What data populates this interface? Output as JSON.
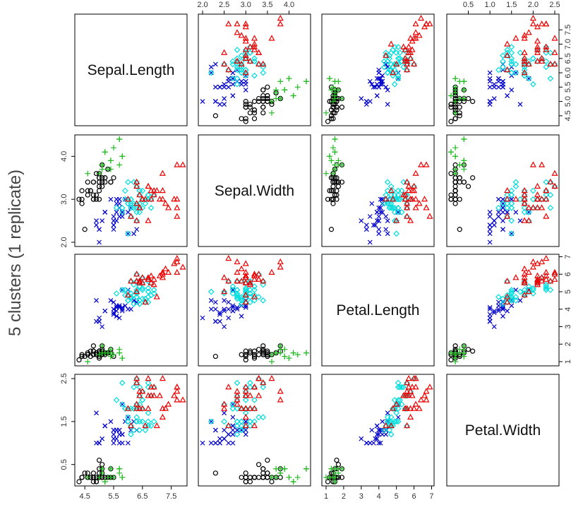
{
  "title": "5 clusters (1 replicate)",
  "chart_data": {
    "type": "scatter",
    "kind": "scatter-matrix",
    "variables": [
      {
        "name": "Sepal.Length",
        "range": [
          4.3,
          7.9
        ],
        "ticks": [
          4.5,
          5.5,
          6.5,
          7.5
        ],
        "tick_labels": [
          "4.5",
          "5.5",
          "6.5",
          "7.5"
        ],
        "side_ticks": [
          4.5,
          5.0,
          5.5,
          6.0,
          6.5,
          7.0,
          7.5
        ],
        "side_tick_labels": [
          "4.5",
          "5.0",
          "5.5",
          "6.0",
          "6.5",
          "7.0",
          "7.5"
        ]
      },
      {
        "name": "Sepal.Width",
        "range": [
          2.0,
          4.4
        ],
        "ticks": [
          2.0,
          2.5,
          3.0,
          3.5,
          4.0
        ],
        "tick_labels": [
          "2.0",
          "2.5",
          "3.0",
          "3.5",
          "4.0"
        ],
        "side_ticks": [
          2.0,
          3.0,
          4.0
        ],
        "side_tick_labels": [
          "2.0",
          "3.0",
          "4.0"
        ]
      },
      {
        "name": "Petal.Length",
        "range": [
          1.0,
          6.9
        ],
        "ticks": [
          1,
          2,
          3,
          4,
          5,
          6,
          7
        ],
        "tick_labels": [
          "1",
          "2",
          "3",
          "4",
          "5",
          "6",
          "7"
        ]
      },
      {
        "name": "Petal.Width",
        "range": [
          0.1,
          2.5
        ],
        "ticks": [
          0.5,
          1.0,
          1.5,
          2.0,
          2.5
        ],
        "tick_labels": [
          "0.5",
          "1.0",
          "1.5",
          "2.0",
          "2.5"
        ],
        "side_ticks": [
          0.5,
          1.5,
          2.5
        ],
        "side_tick_labels": [
          "0.5",
          "1.5",
          "2.5"
        ]
      }
    ],
    "clusters": [
      {
        "symbol": "circle",
        "color": "#000000",
        "points": [
          [
            4.4,
            2.9,
            1.4,
            0.2
          ],
          [
            4.3,
            3.0,
            1.1,
            0.1
          ],
          [
            4.4,
            3.0,
            1.3,
            0.2
          ],
          [
            4.4,
            3.2,
            1.3,
            0.2
          ],
          [
            4.5,
            2.3,
            1.3,
            0.3
          ],
          [
            4.6,
            3.1,
            1.5,
            0.2
          ],
          [
            4.6,
            3.4,
            1.4,
            0.3
          ],
          [
            4.6,
            3.2,
            1.4,
            0.2
          ],
          [
            4.7,
            3.2,
            1.3,
            0.2
          ],
          [
            4.7,
            3.2,
            1.6,
            0.2
          ],
          [
            4.8,
            3.0,
            1.4,
            0.1
          ],
          [
            4.8,
            3.4,
            1.6,
            0.2
          ],
          [
            4.8,
            3.0,
            1.4,
            0.3
          ],
          [
            4.8,
            3.1,
            1.6,
            0.2
          ],
          [
            4.8,
            3.4,
            1.9,
            0.2
          ],
          [
            4.9,
            3.0,
            1.4,
            0.2
          ],
          [
            4.9,
            3.1,
            1.5,
            0.1
          ],
          [
            4.9,
            3.6,
            1.4,
            0.1
          ],
          [
            5.0,
            3.2,
            1.2,
            0.2
          ],
          [
            5.0,
            3.6,
            1.4,
            0.2
          ],
          [
            5.0,
            3.4,
            1.5,
            0.2
          ],
          [
            5.0,
            3.0,
            1.6,
            0.2
          ],
          [
            5.0,
            3.4,
            1.6,
            0.4
          ],
          [
            5.0,
            3.3,
            1.4,
            0.2
          ],
          [
            5.0,
            3.5,
            1.3,
            0.3
          ],
          [
            5.1,
            3.5,
            1.4,
            0.2
          ],
          [
            5.1,
            3.4,
            1.5,
            0.2
          ],
          [
            5.1,
            3.3,
            1.7,
            0.5
          ],
          [
            5.1,
            3.5,
            1.4,
            0.3
          ],
          [
            5.2,
            3.4,
            1.4,
            0.2
          ],
          [
            5.2,
            3.5,
            1.5,
            0.2
          ],
          [
            5.3,
            3.7,
            1.5,
            0.2
          ],
          [
            5.4,
            3.4,
            1.7,
            0.2
          ],
          [
            5.4,
            3.4,
            1.5,
            0.4
          ],
          [
            5.5,
            3.5,
            1.3,
            0.2
          ],
          [
            5.1,
            3.8,
            1.6,
            0.2
          ],
          [
            5.0,
            3.5,
            1.6,
            0.6
          ],
          [
            5.1,
            3.8,
            1.9,
            0.4
          ],
          [
            5.2,
            3.5,
            1.5,
            0.2
          ],
          [
            5.3,
            3.7,
            1.5,
            0.2
          ]
        ]
      },
      {
        "symbol": "plus",
        "color": "#22bb22",
        "points": [
          [
            5.8,
            4.0,
            1.2,
            0.2
          ],
          [
            5.7,
            4.4,
            1.5,
            0.4
          ],
          [
            5.4,
            3.9,
            1.3,
            0.4
          ],
          [
            5.4,
            3.9,
            1.7,
            0.4
          ],
          [
            5.7,
            3.8,
            1.7,
            0.3
          ],
          [
            5.1,
            3.8,
            1.5,
            0.3
          ],
          [
            5.4,
            3.7,
            1.5,
            0.2
          ],
          [
            5.2,
            4.1,
            1.5,
            0.1
          ],
          [
            5.5,
            4.2,
            1.4,
            0.2
          ],
          [
            5.1,
            3.7,
            1.5,
            0.4
          ],
          [
            5.0,
            3.6,
            1.4,
            0.2
          ],
          [
            5.7,
            4.4,
            1.5,
            0.4
          ],
          [
            4.6,
            3.6,
            1.0,
            0.2
          ],
          [
            5.3,
            3.7,
            1.5,
            0.2
          ],
          [
            5.4,
            3.9,
            1.3,
            0.4
          ],
          [
            5.1,
            3.8,
            1.9,
            0.4
          ],
          [
            5.8,
            4.0,
            1.2,
            0.2
          ],
          [
            5.2,
            4.1,
            1.5,
            0.1
          ]
        ]
      },
      {
        "symbol": "cross",
        "color": "#0000cc",
        "points": [
          [
            4.9,
            2.4,
            3.3,
            1.0
          ],
          [
            5.0,
            2.0,
            3.5,
            1.0
          ],
          [
            5.0,
            2.3,
            3.3,
            1.0
          ],
          [
            5.1,
            2.5,
            3.0,
            1.1
          ],
          [
            5.2,
            2.7,
            3.9,
            1.4
          ],
          [
            5.5,
            2.3,
            4.0,
            1.3
          ],
          [
            5.5,
            2.4,
            3.8,
            1.1
          ],
          [
            5.5,
            2.4,
            3.7,
            1.0
          ],
          [
            5.5,
            2.5,
            4.0,
            1.3
          ],
          [
            5.5,
            2.6,
            4.4,
            1.2
          ],
          [
            5.6,
            2.5,
            3.9,
            1.1
          ],
          [
            5.6,
            2.9,
            3.6,
            1.3
          ],
          [
            5.6,
            3.0,
            4.1,
            1.3
          ],
          [
            5.6,
            2.7,
            4.2,
            1.3
          ],
          [
            5.7,
            2.6,
            3.5,
            1.0
          ],
          [
            5.7,
            2.8,
            4.1,
            1.3
          ],
          [
            5.8,
            2.7,
            3.9,
            1.2
          ],
          [
            5.8,
            2.7,
            4.1,
            1.0
          ],
          [
            5.8,
            2.6,
            4.0,
            1.2
          ],
          [
            5.9,
            3.0,
            4.2,
            1.5
          ],
          [
            6.0,
            2.2,
            4.0,
            1.0
          ],
          [
            6.0,
            2.7,
            5.1,
            1.6
          ],
          [
            6.1,
            2.8,
            4.0,
            1.3
          ],
          [
            6.2,
            2.2,
            4.5,
            1.5
          ],
          [
            6.3,
            2.3,
            4.4,
            1.3
          ],
          [
            5.4,
            3.0,
            4.5,
            1.5
          ],
          [
            5.7,
            2.9,
            4.2,
            1.3
          ],
          [
            5.7,
            3.0,
            4.2,
            1.2
          ],
          [
            5.0,
            2.3,
            3.3,
            1.0
          ],
          [
            5.2,
            2.7,
            3.9,
            1.4
          ],
          [
            5.8,
            2.7,
            5.1,
            1.9
          ],
          [
            4.9,
            2.5,
            4.5,
            1.7
          ]
        ]
      },
      {
        "symbol": "diamond",
        "color": "#00dddd",
        "points": [
          [
            6.4,
            3.2,
            4.5,
            1.5
          ],
          [
            6.9,
            3.1,
            4.9,
            1.5
          ],
          [
            6.5,
            2.8,
            4.6,
            1.5
          ],
          [
            6.3,
            3.3,
            4.7,
            1.6
          ],
          [
            6.6,
            2.9,
            4.6,
            1.3
          ],
          [
            6.1,
            2.9,
            4.7,
            1.4
          ],
          [
            6.7,
            3.1,
            4.4,
            1.4
          ],
          [
            6.2,
            2.8,
            4.8,
            1.8
          ],
          [
            6.1,
            3.0,
            4.6,
            1.4
          ],
          [
            6.4,
            2.9,
            4.3,
            1.3
          ],
          [
            6.6,
            3.0,
            4.4,
            1.4
          ],
          [
            6.8,
            2.8,
            4.8,
            1.4
          ],
          [
            6.7,
            3.0,
            5.0,
            1.7
          ],
          [
            6.0,
            2.9,
            4.5,
            1.5
          ],
          [
            6.0,
            3.4,
            4.5,
            1.6
          ],
          [
            6.7,
            3.1,
            4.7,
            1.5
          ],
          [
            6.3,
            2.5,
            4.9,
            1.5
          ],
          [
            6.1,
            2.8,
            4.7,
            1.2
          ],
          [
            6.4,
            2.8,
            5.6,
            2.1
          ],
          [
            6.3,
            2.7,
            4.9,
            1.8
          ],
          [
            6.2,
            3.4,
            5.4,
            2.3
          ],
          [
            6.0,
            3.0,
            4.8,
            1.8
          ],
          [
            6.3,
            2.8,
            5.1,
            1.5
          ],
          [
            6.1,
            3.0,
            4.9,
            1.8
          ],
          [
            6.4,
            2.7,
            5.3,
            1.9
          ],
          [
            6.5,
            3.0,
            5.2,
            2.0
          ],
          [
            5.9,
            3.0,
            5.1,
            1.8
          ],
          [
            6.0,
            2.2,
            5.0,
            1.5
          ],
          [
            6.3,
            2.5,
            5.0,
            1.9
          ],
          [
            6.5,
            3.0,
            5.5,
            1.8
          ],
          [
            5.8,
            2.8,
            5.1,
            2.4
          ],
          [
            6.4,
            3.1,
            5.5,
            1.8
          ],
          [
            6.7,
            3.1,
            5.6,
            2.4
          ],
          [
            6.9,
            3.1,
            5.1,
            2.3
          ],
          [
            6.8,
            3.0,
            5.5,
            2.1
          ],
          [
            6.7,
            3.0,
            5.2,
            2.3
          ],
          [
            6.3,
            3.4,
            5.6,
            2.4
          ],
          [
            6.5,
            3.2,
            5.1,
            2.0
          ],
          [
            6.2,
            2.9,
            4.3,
            1.3
          ],
          [
            5.9,
            3.2,
            4.8,
            1.8
          ],
          [
            6.1,
            2.6,
            5.6,
            1.4
          ],
          [
            6.4,
            3.2,
            5.3,
            2.3
          ],
          [
            5.6,
            2.8,
            4.9,
            2.0
          ],
          [
            6.3,
            2.9,
            5.6,
            1.8
          ],
          [
            6.5,
            3.0,
            5.8,
            2.2
          ],
          [
            6.0,
            2.9,
            4.5,
            1.5
          ],
          [
            6.3,
            3.3,
            6.0,
            2.5
          ],
          [
            5.8,
            2.7,
            5.1,
            1.9
          ]
        ]
      },
      {
        "symbol": "triangle",
        "color": "#ee0000",
        "points": [
          [
            7.1,
            3.0,
            5.9,
            2.1
          ],
          [
            7.6,
            3.0,
            6.6,
            2.1
          ],
          [
            7.3,
            2.9,
            6.3,
            1.8
          ],
          [
            7.2,
            3.6,
            6.1,
            2.5
          ],
          [
            7.7,
            3.8,
            6.7,
            2.2
          ],
          [
            7.7,
            2.6,
            6.9,
            2.3
          ],
          [
            6.9,
            3.2,
            5.7,
            2.3
          ],
          [
            7.7,
            2.8,
            6.7,
            2.0
          ],
          [
            7.2,
            3.2,
            6.0,
            1.8
          ],
          [
            7.2,
            3.0,
            5.8,
            1.6
          ],
          [
            7.4,
            2.8,
            6.1,
            1.9
          ],
          [
            7.9,
            3.8,
            6.4,
            2.0
          ],
          [
            7.7,
            3.0,
            6.1,
            2.3
          ],
          [
            6.8,
            3.2,
            5.9,
            2.3
          ],
          [
            6.7,
            3.3,
            5.7,
            2.5
          ],
          [
            6.7,
            3.3,
            5.7,
            2.1
          ],
          [
            6.3,
            2.9,
            5.6,
            1.8
          ],
          [
            6.5,
            3.0,
            5.8,
            2.2
          ],
          [
            6.7,
            2.5,
            5.8,
            1.8
          ],
          [
            6.4,
            2.8,
            5.6,
            2.2
          ],
          [
            6.3,
            3.3,
            6.0,
            2.5
          ],
          [
            6.9,
            3.1,
            5.4,
            2.1
          ],
          [
            6.5,
            3.0,
            5.5,
            1.8
          ],
          [
            6.1,
            2.6,
            5.6,
            1.4
          ],
          [
            6.4,
            3.1,
            5.5,
            1.8
          ],
          [
            6.0,
            3.0,
            4.8,
            1.8
          ],
          [
            6.3,
            2.5,
            5.0,
            1.9
          ],
          [
            6.4,
            2.8,
            5.6,
            2.1
          ],
          [
            6.3,
            3.4,
            5.6,
            2.4
          ],
          [
            6.8,
            3.0,
            5.5,
            2.1
          ],
          [
            7.0,
            3.2,
            4.7,
            1.4
          ],
          [
            6.6,
            3.0,
            4.4,
            1.4
          ]
        ]
      }
    ],
    "grid": false,
    "legend": "none"
  }
}
